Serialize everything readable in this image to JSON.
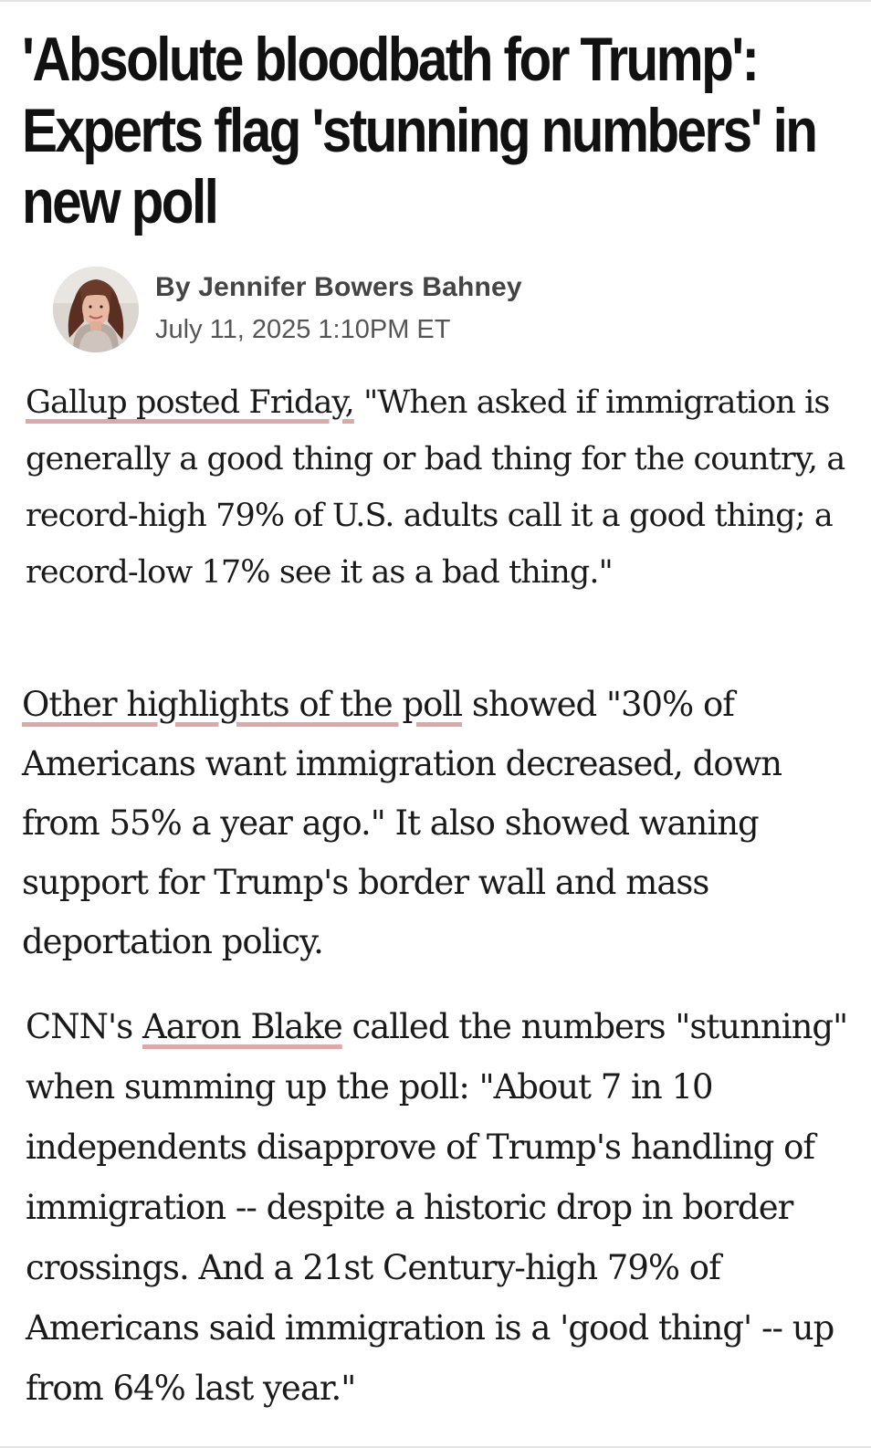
{
  "article": {
    "headline": "'Absolute bloodbath for Trump': Experts flag 'stunning numbers' in new poll",
    "author": "By Jennifer Bowers Bahney",
    "timestamp": "July 11, 2025 1:10PM ET",
    "avatar_icon": "author-photo"
  },
  "paragraphs": {
    "p1": {
      "link_text": "Gallup posted Friday,",
      "text": " \"When asked if immigration is generally a good thing or bad thing for the country, a record-high 79% of U.S. adults call it a good thing; a record-low 17% see it as a bad thing.\""
    },
    "p2": {
      "link_text": "Other highlights of the poll",
      "text": " showed \"30% of Americans want immigration decreased, down from 55% a year ago.\" It also showed waning support for Trump's border wall and mass deportation policy."
    },
    "p3": {
      "before": "CNN's ",
      "link_text": "Aaron Blake",
      "text": " called the numbers \"stunning\" when summing up the poll: \"About 7 in 10 independents disapprove of Trump's handling of immigration -- despite a historic drop in border crossings. And a 21st Century-high 79% of Americans said immigration is a 'good thing' -- up from 64% last year.\""
    }
  },
  "colors": {
    "link_underline": "#dea7aa",
    "headline": "#111111",
    "byline": "#444444"
  }
}
